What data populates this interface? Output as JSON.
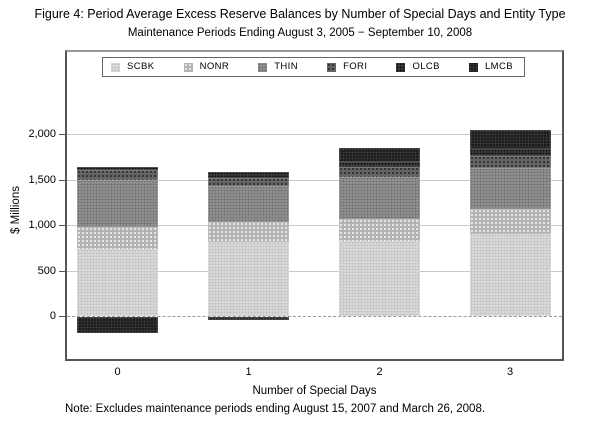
{
  "chart_data": {
    "type": "bar",
    "stacked": true,
    "title": "Figure 4: Period Average Excess Reserve Balances by Number of Special Days and Entity Type",
    "subtitle": "Maintenance Periods Ending August 3, 2005 − September 10, 2008",
    "xlabel": "Number of Special Days",
    "ylabel": "$ Millions",
    "categories": [
      "0",
      "1",
      "2",
      "3"
    ],
    "series": [
      {
        "name": "SCBK",
        "values": [
          740,
          815,
          820,
          900
        ],
        "color_base": "#dcdcdc",
        "color_dot": "#bfbfbf"
      },
      {
        "name": "NONR",
        "values": [
          240,
          220,
          245,
          275
        ],
        "color_base": "#b2b2b2",
        "color_dot": "#ebebeb"
      },
      {
        "name": "THIN",
        "values": [
          515,
          395,
          460,
          455
        ],
        "color_base": "#959595",
        "color_dot": "#707070"
      },
      {
        "name": "FORI",
        "values": [
          105,
          90,
          115,
          130
        ],
        "color_base": "#646464",
        "color_dot": "#303030"
      },
      {
        "name": "OLCB",
        "values": [
          35,
          65,
          50,
          75
        ],
        "color_base": "#424242",
        "color_dot": "#0f0f0f"
      },
      {
        "name": "LMCB",
        "values": [
          -175,
          -30,
          160,
          205
        ],
        "color_base": "#191919",
        "color_dot": "#3d3d3d"
      }
    ],
    "yticks": [
      {
        "value": 0,
        "label": "0"
      },
      {
        "value": 500,
        "label": "500"
      },
      {
        "value": 1000,
        "label": "1,000"
      },
      {
        "value": 1500,
        "label": "1,500"
      },
      {
        "value": 2000,
        "label": "2,000"
      }
    ],
    "ylim": [
      -480,
      2900
    ],
    "grid": true,
    "legend_position": "top-inside",
    "zero_line": "dashed"
  },
  "note": "Note: Excludes maintenance periods ending August 15, 2007 and March 26, 2008."
}
